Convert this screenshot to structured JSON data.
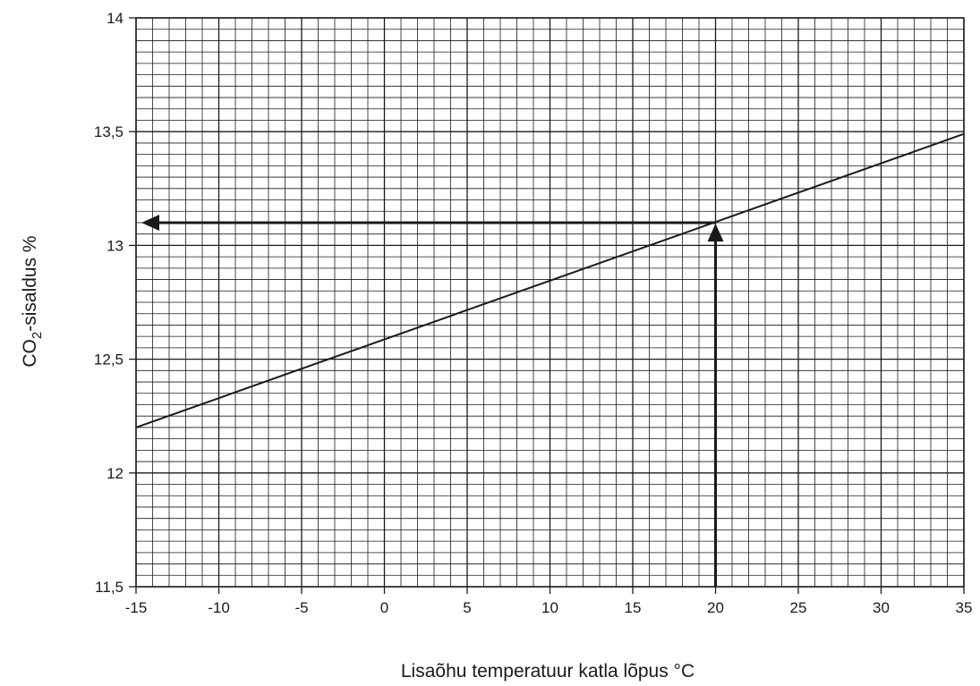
{
  "chart_data": {
    "type": "line",
    "xlabel": "Lisaõhu temperatuur katla lõpus °C",
    "ylabel_main": "CO",
    "ylabel_sub": "2",
    "ylabel_rest": "-sisaldus %",
    "xlim": [
      -15,
      35
    ],
    "ylim": [
      11.5,
      14
    ],
    "x_ticks": [
      -15,
      -10,
      -5,
      0,
      5,
      10,
      15,
      20,
      25,
      30,
      35
    ],
    "x_tick_labels": [
      "-15",
      "-10",
      "-5",
      "0",
      "5",
      "10",
      "15",
      "20",
      "25",
      "30",
      "35"
    ],
    "y_ticks": [
      11.5,
      12,
      12.5,
      13,
      13.5,
      14
    ],
    "y_tick_labels": [
      "11,5",
      "12",
      "12,5",
      "13",
      "13,5",
      "14"
    ],
    "grid": true,
    "series": [
      {
        "x": [
          -15,
          35
        ],
        "y": [
          12.2,
          13.49
        ]
      }
    ],
    "annotations": {
      "reading_point": {
        "x": 20,
        "y": 13.1
      },
      "arrows": [
        "vertical-up",
        "horizontal-left"
      ]
    }
  }
}
